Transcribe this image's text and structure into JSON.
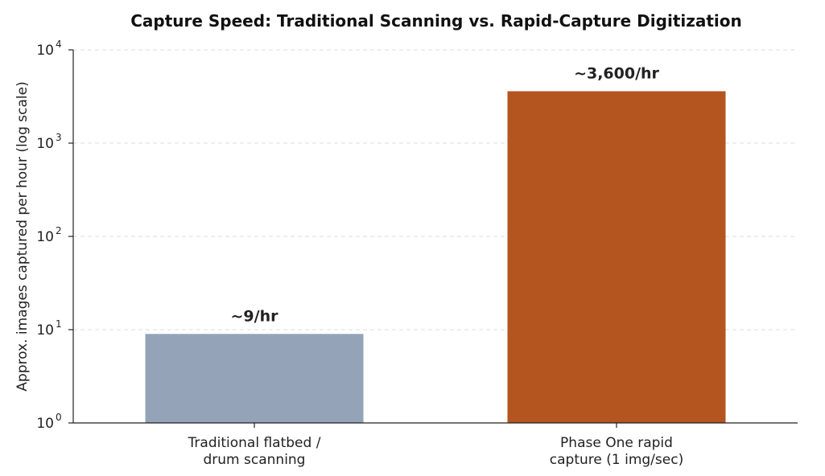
{
  "chart_data": {
    "type": "bar",
    "title": "Capture Speed: Traditional Scanning vs. Rapid-Capture Digitization",
    "ylabel": "Approx. images captured per hour (log scale)",
    "xlabel": "",
    "yscale": "log",
    "ylim": [
      1,
      10000
    ],
    "yticks": [
      {
        "base": "10",
        "exp": "0",
        "value": 1
      },
      {
        "base": "10",
        "exp": "1",
        "value": 10
      },
      {
        "base": "10",
        "exp": "2",
        "value": 100
      },
      {
        "base": "10",
        "exp": "3",
        "value": 1000
      },
      {
        "base": "10",
        "exp": "4",
        "value": 10000
      }
    ],
    "grid": true,
    "categories": [
      [
        "Traditional flatbed /",
        "drum scanning"
      ],
      [
        "Phase One rapid",
        "capture (1 img/sec)"
      ]
    ],
    "values": [
      9,
      3600
    ],
    "data_labels": [
      "~9/hr",
      "~3,600/hr"
    ],
    "colors": [
      "#94a3b8",
      "#b4541e"
    ]
  }
}
